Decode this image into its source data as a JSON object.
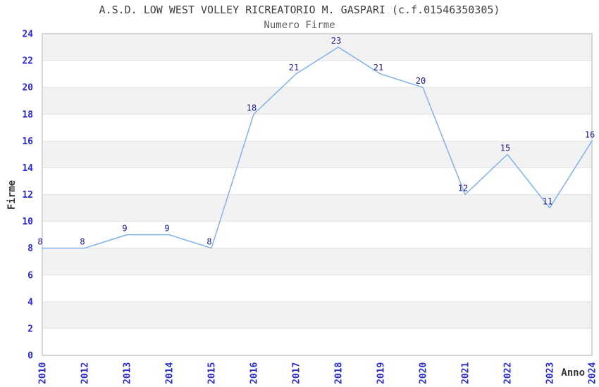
{
  "page": {
    "background": "#ffffff"
  },
  "chart_data": {
    "type": "line",
    "title": "A.S.D. LOW WEST VOLLEY RICREATORIO M. GASPARI (c.f.01546350305)",
    "subtitle": "Numero Firme",
    "xlabel": "Anno",
    "ylabel": "Firme",
    "categories": [
      "2010",
      "2012",
      "2013",
      "2014",
      "2015",
      "2016",
      "2017",
      "2018",
      "2019",
      "2020",
      "2021",
      "2022",
      "2023",
      "2024"
    ],
    "values": [
      8,
      8,
      9,
      9,
      8,
      18,
      21,
      23,
      21,
      20,
      12,
      15,
      11,
      16
    ],
    "point_labels": [
      "8",
      "8",
      "9",
      "9",
      "8",
      "18",
      "21",
      "23",
      "21",
      "20",
      "12",
      "15",
      "11",
      "16"
    ],
    "ylim": [
      0,
      24
    ],
    "ytick_step": 2,
    "yticks": [
      0,
      2,
      4,
      6,
      8,
      10,
      12,
      14,
      16,
      18,
      20,
      22,
      24
    ],
    "legend": "none",
    "grid": "alternating horizontal bands every 2 units",
    "x_tick_rotation": "vertical",
    "markers": "none",
    "colors": {
      "line": "#7fb3ea",
      "tick_labels": "#2a2ad0",
      "point_labels": "#1c1c8e",
      "title": "#404040",
      "subtitle": "#606060",
      "band": "#f2f2f2",
      "plot_border": "#d6d6d6",
      "gridline": "#e2e2e2",
      "axis_label": "#333333",
      "plot_background": "#ffffff"
    }
  }
}
